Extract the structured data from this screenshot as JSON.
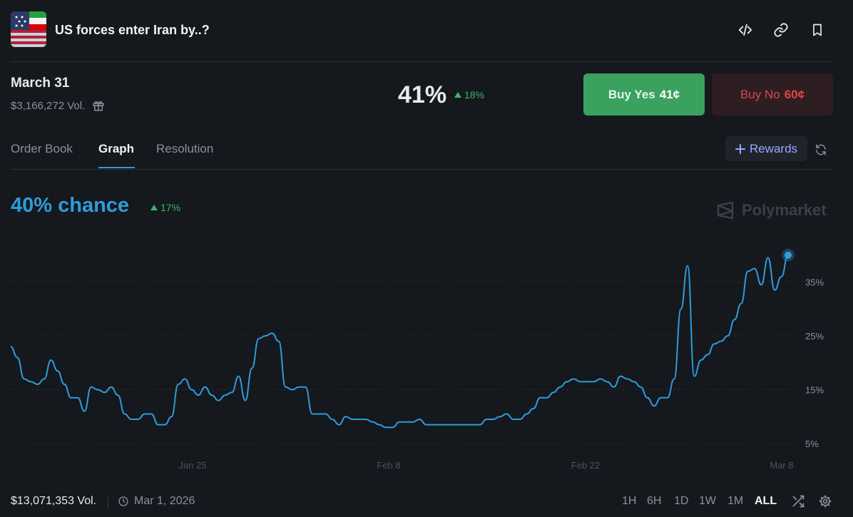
{
  "market": {
    "title": "US forces enter Iran by..?"
  },
  "header_icons": [
    "code-icon",
    "link-icon",
    "bookmark-icon"
  ],
  "outcome": {
    "date": "March 31",
    "volume": "$3,166,272 Vol.",
    "percent": "41%",
    "delta": "18%"
  },
  "buy_yes": {
    "label": "Buy Yes",
    "price": "41¢"
  },
  "buy_no": {
    "label": "Buy No",
    "price": "60¢"
  },
  "tabs": [
    {
      "label": "Order Book"
    },
    {
      "label": "Graph"
    },
    {
      "label": "Resolution"
    }
  ],
  "rewards": {
    "label": "Rewards"
  },
  "graph": {
    "chance": "40% chance",
    "delta": "17%",
    "watermark": "Polymarket"
  },
  "chart_data": {
    "type": "line",
    "x_ticks": [
      "Jan 25",
      "Feb 8",
      "Feb 22",
      "Mar 8"
    ],
    "y_ticks": [
      "35%",
      "25%",
      "15%",
      "5%"
    ],
    "ylim": [
      2,
      43
    ],
    "grid": true,
    "color": "#2d9cdb",
    "series": [
      {
        "values": [
          23,
          21,
          17,
          16.5,
          16,
          17,
          20.5,
          18.5,
          16,
          13.5,
          13.5,
          11,
          15.5,
          15,
          14.5,
          15.5,
          14,
          10.5,
          9.5,
          9.5,
          10.5,
          10.5,
          8.5,
          8.5,
          10,
          16,
          17,
          15,
          14,
          15.5,
          14,
          13,
          14,
          14.5,
          17.5,
          13,
          19,
          24.5,
          25,
          25.5,
          24,
          15.5,
          15,
          15.5,
          15.5,
          10.5,
          10.5,
          10.5,
          9.5,
          8.5,
          10,
          9.5,
          9.5,
          9.5,
          9,
          8.5,
          8,
          8,
          9,
          9,
          9,
          9.5,
          8.5,
          8.5,
          8.5,
          8.5,
          8.5,
          8.5,
          8.5,
          8.5,
          8.5,
          9.5,
          9.5,
          10,
          10.5,
          9.5,
          9.5,
          10.5,
          11.5,
          13.5,
          13.5,
          14.5,
          15.5,
          16.5,
          17,
          16.5,
          16.5,
          16.5,
          17,
          16.5,
          15.5,
          17.5,
          17,
          16.5,
          15.5,
          13.5,
          12,
          13.5,
          13.5,
          17,
          30,
          38,
          17.5,
          20.5,
          21.5,
          23.5,
          24,
          25,
          28,
          31,
          37,
          37.5,
          34.5,
          39.5,
          33.5,
          36,
          40
        ]
      }
    ]
  },
  "footer": {
    "volume": "$13,071,353 Vol.",
    "date": "Mar 1, 2026",
    "ranges": [
      "1H",
      "6H",
      "1D",
      "1W",
      "1M",
      "ALL"
    ],
    "active_range": "ALL"
  }
}
